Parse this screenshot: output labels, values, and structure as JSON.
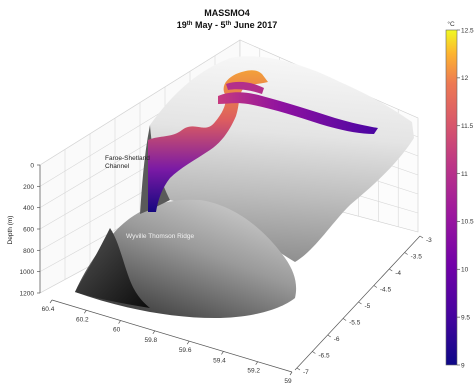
{
  "chart_data": {
    "type": "surface3d",
    "title": "MASSMO4",
    "subtitle_parts": {
      "start_day": "19",
      "start_sup": "th",
      "start_month": " May - ",
      "end_day": "5",
      "end_sup": "th",
      "end_month": " June 2017"
    },
    "zlabel": "Depth (m)",
    "zlim": [
      0,
      1200
    ],
    "z_reversed": true,
    "z_ticks": [
      "0",
      "200",
      "400",
      "600",
      "800",
      "1000",
      "1200"
    ],
    "x_ticks": [
      "60.4",
      "60.2",
      "60",
      "59.8",
      "59.6",
      "59.4",
      "59.2",
      "59"
    ],
    "y_ticks": [
      "-3",
      "-3.5",
      "-4",
      "-4.5",
      "-5",
      "-5.5",
      "-6",
      "-6.5",
      "-7"
    ],
    "colorbar": {
      "colormap": "plasma",
      "range": [
        9,
        12.5
      ],
      "ticks": [
        "9",
        "9.5",
        "10",
        "10.5",
        "11",
        "11.5",
        "12",
        "12.5"
      ],
      "label": "°C"
    },
    "annotations": [
      {
        "text": "Faroe-Shetland",
        "style": "dark"
      },
      {
        "text": "Channel",
        "style": "dark"
      },
      {
        "text": "Wyville Thomson Ridge",
        "style": "light"
      }
    ],
    "grid": true,
    "colors": {
      "terrain_light": "#f2f2f2",
      "terrain_dark": "#151515"
    }
  }
}
